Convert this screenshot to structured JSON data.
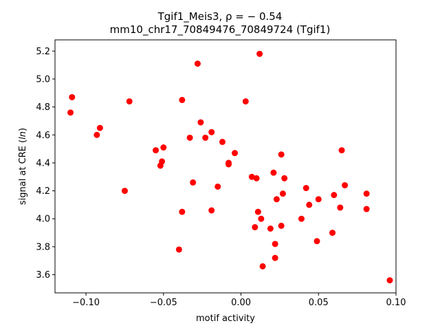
{
  "chart_data": {
    "type": "scatter",
    "title_line1": "Tgif1_Meis3, ρ = − 0.54",
    "title_line2": "mm10_chr17_70849476_70849724 (Tgif1)",
    "xlabel": "motif activity",
    "ylabel": "signal at CRE (ln)",
    "xlim": [
      -0.12,
      0.1
    ],
    "ylim": [
      3.47,
      5.28
    ],
    "xticks": [
      -0.1,
      -0.05,
      0.0,
      0.05,
      0.1
    ],
    "xtick_labels": [
      "−0.10",
      "−0.05",
      "0.00",
      "0.05",
      "0.10"
    ],
    "yticks": [
      3.6,
      3.8,
      4.0,
      4.2,
      4.4,
      4.6,
      4.8,
      5.0,
      5.2
    ],
    "ytick_labels": [
      "3.6",
      "3.8",
      "4.0",
      "4.2",
      "4.4",
      "4.6",
      "4.8",
      "5.0",
      "5.2"
    ],
    "marker_color": "#ff0000",
    "points": [
      {
        "x": -0.109,
        "y": 4.87
      },
      {
        "x": -0.11,
        "y": 4.76
      },
      {
        "x": -0.093,
        "y": 4.6
      },
      {
        "x": -0.091,
        "y": 4.65
      },
      {
        "x": -0.072,
        "y": 4.84
      },
      {
        "x": -0.075,
        "y": 4.2
      },
      {
        "x": -0.055,
        "y": 4.49
      },
      {
        "x": -0.05,
        "y": 4.51
      },
      {
        "x": -0.051,
        "y": 4.41
      },
      {
        "x": -0.052,
        "y": 4.38
      },
      {
        "x": -0.04,
        "y": 3.78
      },
      {
        "x": -0.038,
        "y": 4.05
      },
      {
        "x": -0.038,
        "y": 4.85
      },
      {
        "x": -0.033,
        "y": 4.58
      },
      {
        "x": -0.031,
        "y": 4.26
      },
      {
        "x": -0.028,
        "y": 5.11
      },
      {
        "x": -0.026,
        "y": 4.69
      },
      {
        "x": -0.023,
        "y": 4.58
      },
      {
        "x": -0.019,
        "y": 4.62
      },
      {
        "x": -0.019,
        "y": 4.06
      },
      {
        "x": -0.015,
        "y": 4.23
      },
      {
        "x": -0.012,
        "y": 4.55
      },
      {
        "x": -0.008,
        "y": 4.4
      },
      {
        "x": -0.008,
        "y": 4.39
      },
      {
        "x": -0.004,
        "y": 4.47
      },
      {
        "x": 0.003,
        "y": 4.84
      },
      {
        "x": 0.007,
        "y": 4.3
      },
      {
        "x": 0.009,
        "y": 3.94
      },
      {
        "x": 0.01,
        "y": 4.29
      },
      {
        "x": 0.011,
        "y": 4.05
      },
      {
        "x": 0.012,
        "y": 5.18
      },
      {
        "x": 0.013,
        "y": 4.0
      },
      {
        "x": 0.014,
        "y": 3.66
      },
      {
        "x": 0.019,
        "y": 3.93
      },
      {
        "x": 0.021,
        "y": 4.33
      },
      {
        "x": 0.022,
        "y": 3.72
      },
      {
        "x": 0.022,
        "y": 3.82
      },
      {
        "x": 0.023,
        "y": 4.14
      },
      {
        "x": 0.026,
        "y": 4.46
      },
      {
        "x": 0.026,
        "y": 3.95
      },
      {
        "x": 0.027,
        "y": 4.18
      },
      {
        "x": 0.028,
        "y": 4.29
      },
      {
        "x": 0.039,
        "y": 4.0
      },
      {
        "x": 0.042,
        "y": 4.22
      },
      {
        "x": 0.044,
        "y": 4.1
      },
      {
        "x": 0.049,
        "y": 3.84
      },
      {
        "x": 0.05,
        "y": 4.14
      },
      {
        "x": 0.059,
        "y": 3.9
      },
      {
        "x": 0.06,
        "y": 4.17
      },
      {
        "x": 0.064,
        "y": 4.08
      },
      {
        "x": 0.065,
        "y": 4.49
      },
      {
        "x": 0.067,
        "y": 4.24
      },
      {
        "x": 0.081,
        "y": 4.18
      },
      {
        "x": 0.081,
        "y": 4.07
      },
      {
        "x": 0.096,
        "y": 3.56
      }
    ]
  }
}
